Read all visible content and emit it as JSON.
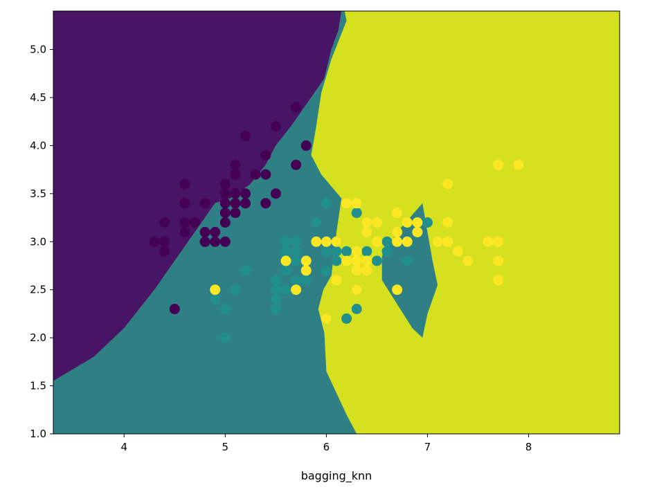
{
  "chart_data": {
    "type": "scatter",
    "title": "",
    "xlabel": "bagging_knn",
    "ylabel": "",
    "xlim": [
      3.3,
      8.9
    ],
    "ylim": [
      1.0,
      5.4
    ],
    "x_ticks": [
      "4",
      "5",
      "6",
      "7",
      "8"
    ],
    "y_ticks": [
      "1.0",
      "1.5",
      "2.0",
      "2.5",
      "3.0",
      "3.5",
      "4.0",
      "4.5",
      "5.0"
    ],
    "grid": false,
    "legend": "none",
    "background_color": "#d5e11f",
    "regions": [
      {
        "class": "class-0",
        "color": "#471466",
        "polygon": [
          [
            3.3,
            5.4
          ],
          [
            6.15,
            5.4
          ],
          [
            6.12,
            5.2
          ],
          [
            6.05,
            5.0
          ],
          [
            5.98,
            4.7
          ],
          [
            5.85,
            4.5
          ],
          [
            5.65,
            4.2
          ],
          [
            5.5,
            4.0
          ],
          [
            5.4,
            3.8
          ],
          [
            5.25,
            3.6
          ],
          [
            5.05,
            3.45
          ],
          [
            4.9,
            3.4
          ],
          [
            4.7,
            3.1
          ],
          [
            4.5,
            2.8
          ],
          [
            4.3,
            2.5
          ],
          [
            4.0,
            2.1
          ],
          [
            3.7,
            1.8
          ],
          [
            3.3,
            1.55
          ]
        ]
      },
      {
        "class": "class-1",
        "color": "#2e8085",
        "polygon": [
          [
            3.3,
            1.0
          ],
          [
            3.3,
            1.55
          ],
          [
            3.7,
            1.8
          ],
          [
            4.0,
            2.1
          ],
          [
            4.3,
            2.5
          ],
          [
            4.5,
            2.8
          ],
          [
            4.7,
            3.1
          ],
          [
            4.9,
            3.4
          ],
          [
            5.05,
            3.45
          ],
          [
            5.25,
            3.6
          ],
          [
            5.4,
            3.8
          ],
          [
            5.5,
            4.0
          ],
          [
            5.65,
            4.2
          ],
          [
            5.85,
            4.5
          ],
          [
            5.98,
            4.7
          ],
          [
            6.05,
            5.0
          ],
          [
            6.12,
            5.2
          ],
          [
            6.15,
            5.4
          ],
          [
            6.18,
            5.4
          ],
          [
            6.2,
            5.3
          ],
          [
            6.05,
            4.9
          ],
          [
            5.95,
            4.55
          ],
          [
            5.9,
            4.2
          ],
          [
            5.85,
            3.9
          ],
          [
            5.95,
            3.7
          ],
          [
            6.15,
            3.45
          ],
          [
            6.1,
            3.1
          ],
          [
            6.05,
            2.65
          ],
          [
            5.97,
            2.5
          ],
          [
            5.92,
            2.3
          ],
          [
            5.98,
            2.05
          ],
          [
            6.0,
            1.65
          ],
          [
            6.2,
            1.2
          ],
          [
            6.3,
            1.0
          ]
        ]
      },
      {
        "class": "class-1",
        "color": "#2e8085",
        "polygon": [
          [
            6.95,
            3.4
          ],
          [
            6.7,
            3.1
          ],
          [
            6.55,
            2.85
          ],
          [
            6.55,
            2.6
          ],
          [
            6.7,
            2.35
          ],
          [
            6.85,
            2.1
          ],
          [
            6.95,
            2.0
          ],
          [
            7.0,
            2.25
          ],
          [
            7.1,
            2.55
          ],
          [
            7.05,
            2.8
          ]
        ]
      }
    ],
    "series": [
      {
        "class": "class-0",
        "color": "#440154",
        "points": [
          [
            4.3,
            3.0
          ],
          [
            4.4,
            3.0
          ],
          [
            4.4,
            3.2
          ],
          [
            4.4,
            2.9
          ],
          [
            4.5,
            2.3
          ],
          [
            4.6,
            3.1
          ],
          [
            4.6,
            3.2
          ],
          [
            4.6,
            3.4
          ],
          [
            4.6,
            3.6
          ],
          [
            4.7,
            3.2
          ],
          [
            4.8,
            3.0
          ],
          [
            4.8,
            3.1
          ],
          [
            4.8,
            3.4
          ],
          [
            4.8,
            3.0
          ],
          [
            4.9,
            3.0
          ],
          [
            4.9,
            3.1
          ],
          [
            5.0,
            3.0
          ],
          [
            5.0,
            3.2
          ],
          [
            5.0,
            3.3
          ],
          [
            5.0,
            3.4
          ],
          [
            5.0,
            3.5
          ],
          [
            5.0,
            3.6
          ],
          [
            5.1,
            3.3
          ],
          [
            5.1,
            3.4
          ],
          [
            5.1,
            3.5
          ],
          [
            5.1,
            3.7
          ],
          [
            5.1,
            3.8
          ],
          [
            5.2,
            3.4
          ],
          [
            5.2,
            3.5
          ],
          [
            5.2,
            4.1
          ],
          [
            5.3,
            3.7
          ],
          [
            5.4,
            3.4
          ],
          [
            5.4,
            3.7
          ],
          [
            5.4,
            3.9
          ],
          [
            5.5,
            3.5
          ],
          [
            5.5,
            4.2
          ],
          [
            5.7,
            3.8
          ],
          [
            5.7,
            4.4
          ],
          [
            5.8,
            4.0
          ]
        ]
      },
      {
        "class": "class-1",
        "color": "#21908d",
        "points": [
          [
            4.9,
            2.4
          ],
          [
            5.0,
            2.0
          ],
          [
            5.0,
            2.3
          ],
          [
            5.1,
            2.5
          ],
          [
            5.2,
            2.7
          ],
          [
            5.5,
            2.3
          ],
          [
            5.5,
            2.4
          ],
          [
            5.5,
            2.5
          ],
          [
            5.5,
            2.6
          ],
          [
            5.6,
            2.5
          ],
          [
            5.6,
            2.7
          ],
          [
            5.6,
            2.9
          ],
          [
            5.6,
            3.0
          ],
          [
            5.7,
            2.6
          ],
          [
            5.7,
            2.8
          ],
          [
            5.7,
            2.9
          ],
          [
            5.7,
            3.0
          ],
          [
            5.8,
            2.6
          ],
          [
            5.8,
            2.7
          ],
          [
            5.9,
            3.0
          ],
          [
            5.9,
            3.2
          ],
          [
            6.0,
            2.2
          ],
          [
            6.0,
            2.7
          ],
          [
            6.0,
            2.9
          ],
          [
            6.0,
            3.4
          ],
          [
            6.1,
            2.8
          ],
          [
            6.1,
            2.9
          ],
          [
            6.1,
            3.0
          ],
          [
            6.2,
            2.2
          ],
          [
            6.2,
            2.9
          ],
          [
            6.3,
            2.3
          ],
          [
            6.3,
            2.5
          ],
          [
            6.3,
            3.3
          ],
          [
            6.4,
            2.9
          ],
          [
            6.4,
            3.2
          ],
          [
            6.5,
            2.8
          ],
          [
            6.6,
            2.9
          ],
          [
            6.6,
            3.0
          ],
          [
            6.7,
            3.1
          ],
          [
            6.8,
            2.8
          ],
          [
            6.9,
            3.1
          ],
          [
            7.0,
            3.2
          ]
        ]
      },
      {
        "class": "class-2",
        "color": "#fde725",
        "points": [
          [
            4.9,
            2.5
          ],
          [
            5.6,
            2.8
          ],
          [
            5.7,
            2.5
          ],
          [
            5.8,
            2.7
          ],
          [
            5.8,
            2.8
          ],
          [
            5.9,
            3.0
          ],
          [
            6.0,
            2.2
          ],
          [
            6.0,
            3.0
          ],
          [
            6.1,
            2.6
          ],
          [
            6.1,
            3.0
          ],
          [
            6.2,
            2.8
          ],
          [
            6.2,
            3.4
          ],
          [
            6.3,
            2.5
          ],
          [
            6.3,
            2.7
          ],
          [
            6.3,
            2.8
          ],
          [
            6.3,
            2.9
          ],
          [
            6.3,
            3.4
          ],
          [
            6.4,
            2.7
          ],
          [
            6.4,
            2.8
          ],
          [
            6.4,
            3.1
          ],
          [
            6.4,
            3.2
          ],
          [
            6.5,
            3.0
          ],
          [
            6.5,
            3.2
          ],
          [
            6.7,
            2.5
          ],
          [
            6.7,
            3.0
          ],
          [
            6.7,
            3.1
          ],
          [
            6.7,
            3.3
          ],
          [
            6.8,
            3.0
          ],
          [
            6.8,
            3.2
          ],
          [
            6.9,
            3.1
          ],
          [
            6.9,
            3.2
          ],
          [
            7.1,
            3.0
          ],
          [
            7.2,
            3.0
          ],
          [
            7.2,
            3.2
          ],
          [
            7.2,
            3.6
          ],
          [
            7.3,
            2.9
          ],
          [
            7.4,
            2.8
          ],
          [
            7.6,
            3.0
          ],
          [
            7.7,
            2.6
          ],
          [
            7.7,
            2.8
          ],
          [
            7.7,
            3.0
          ],
          [
            7.7,
            3.8
          ],
          [
            7.9,
            3.8
          ]
        ]
      }
    ]
  }
}
